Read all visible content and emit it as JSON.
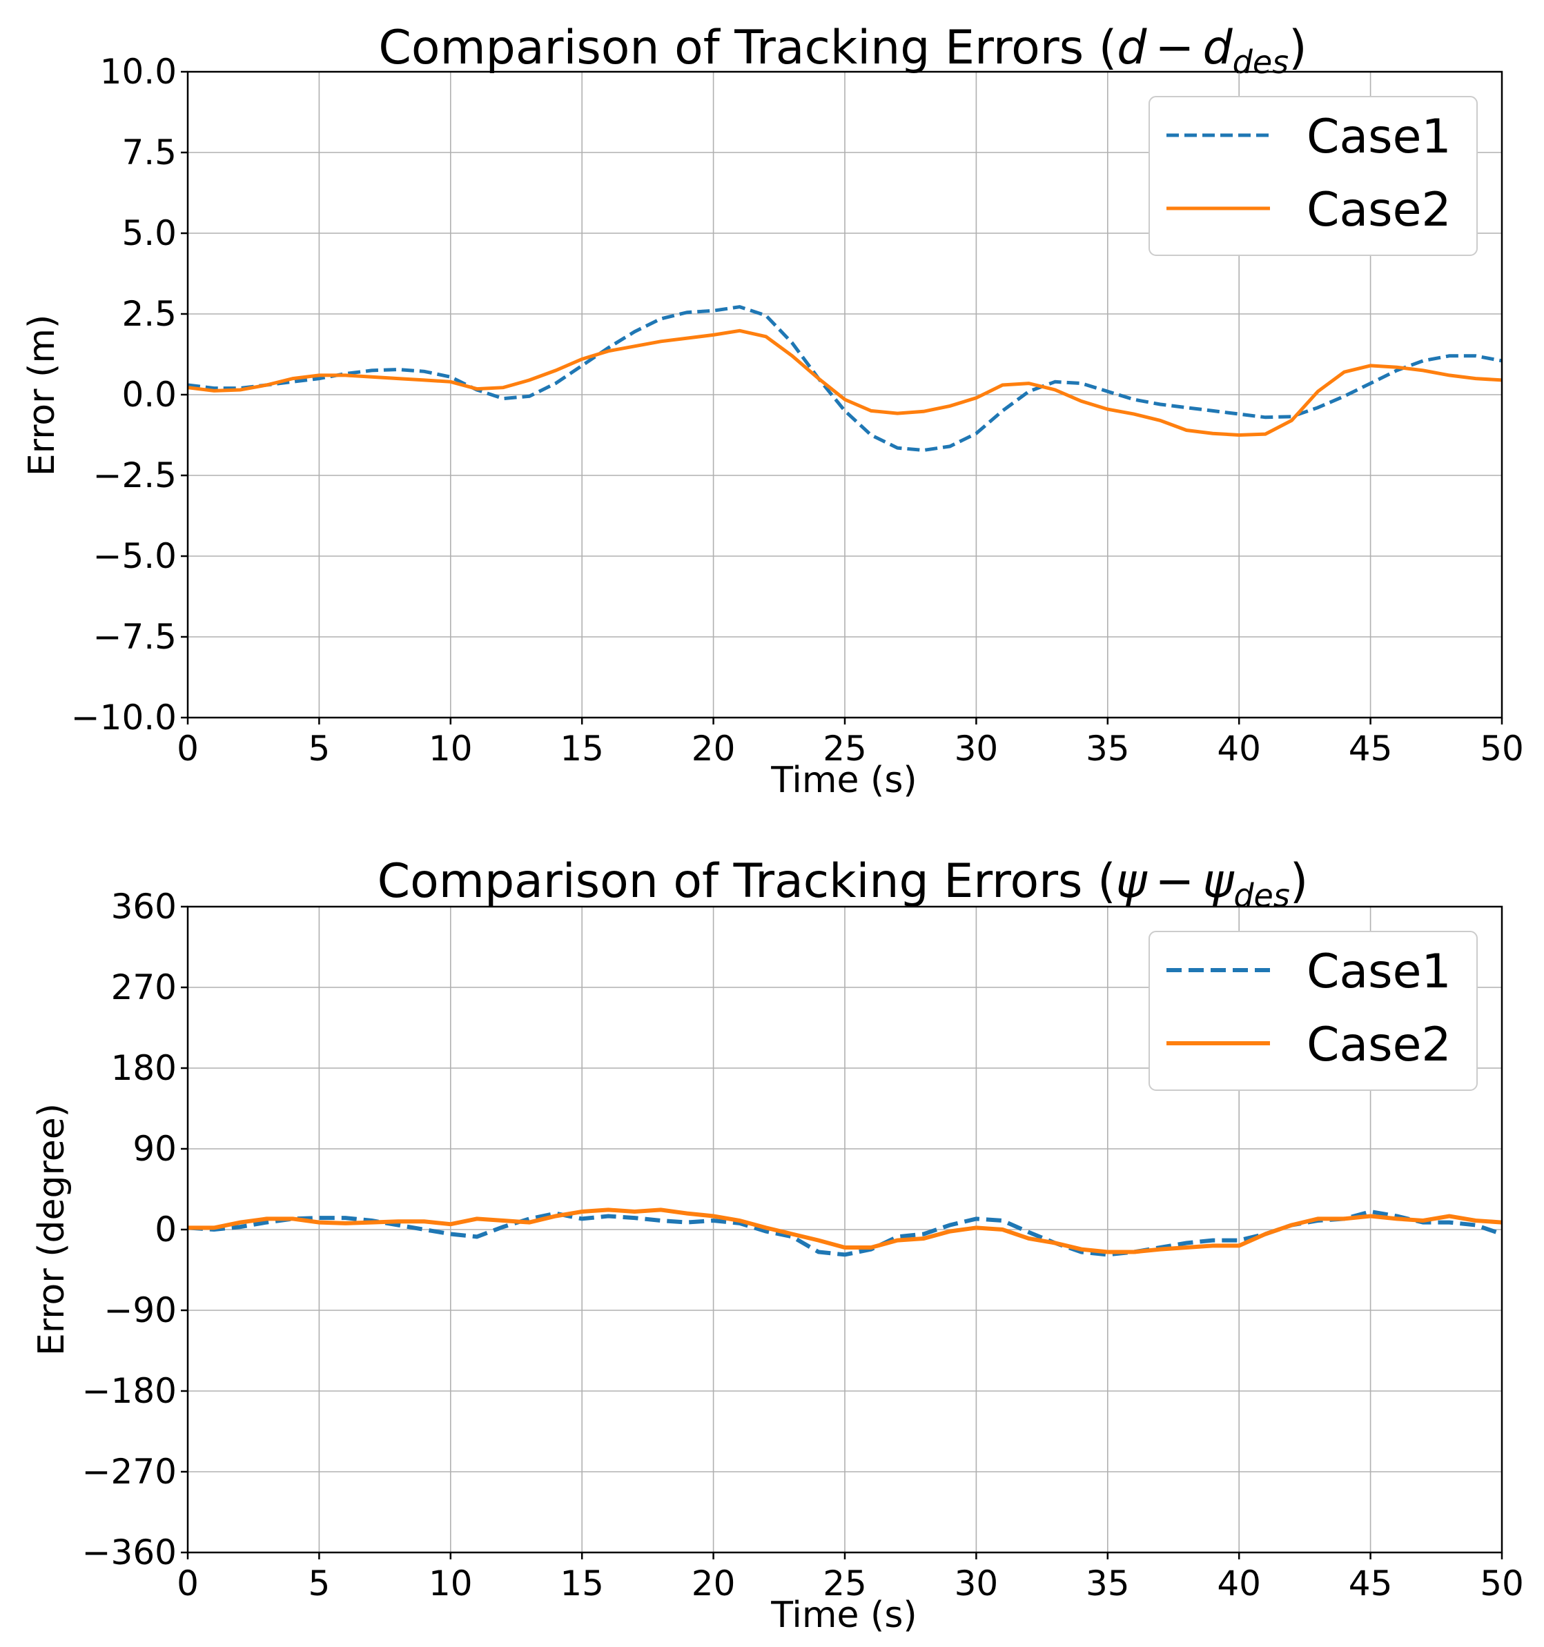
{
  "chart_data": [
    {
      "type": "line",
      "title": "Comparison of Tracking Errors (",
      "title_math": {
        "a": "d",
        "op": "−",
        "b": "d",
        "sub": "des"
      },
      "title_close": ")",
      "xlabel": "Time (s)",
      "ylabel": "Error (m)",
      "xlim": [
        0,
        50
      ],
      "ylim": [
        -10,
        10
      ],
      "xticks": [
        0,
        5,
        10,
        15,
        20,
        25,
        30,
        35,
        40,
        45,
        50
      ],
      "yticks": [
        -10,
        -7.5,
        -5,
        -2.5,
        0,
        2.5,
        5,
        7.5,
        10
      ],
      "xtick_labels": [
        "0",
        "5",
        "10",
        "15",
        "20",
        "25",
        "30",
        "35",
        "40",
        "45",
        "50"
      ],
      "ytick_labels": [
        "−10.0",
        "−7.5",
        "−5.0",
        "−2.5",
        "0.0",
        "2.5",
        "5.0",
        "7.5",
        "10.0"
      ],
      "grid": true,
      "legend": {
        "location": "top-right",
        "entries": [
          "Case1",
          "Case2"
        ]
      },
      "series": [
        {
          "name": "Case1",
          "style": "dashed",
          "color": "#1f77b4",
          "points": [
            [
              0,
              0.3
            ],
            [
              1,
              0.2
            ],
            [
              2,
              0.2
            ],
            [
              3,
              0.3
            ],
            [
              4,
              0.4
            ],
            [
              5,
              0.5
            ],
            [
              6,
              0.65
            ],
            [
              7,
              0.75
            ],
            [
              8,
              0.78
            ],
            [
              9,
              0.72
            ],
            [
              10,
              0.55
            ],
            [
              11,
              0.15
            ],
            [
              12,
              -0.12
            ],
            [
              13,
              -0.05
            ],
            [
              14,
              0.35
            ],
            [
              15,
              0.9
            ],
            [
              16,
              1.45
            ],
            [
              17,
              1.95
            ],
            [
              18,
              2.35
            ],
            [
              19,
              2.55
            ],
            [
              20,
              2.6
            ],
            [
              21,
              2.72
            ],
            [
              22,
              2.45
            ],
            [
              23,
              1.6
            ],
            [
              24,
              0.5
            ],
            [
              25,
              -0.5
            ],
            [
              26,
              -1.25
            ],
            [
              27,
              -1.65
            ],
            [
              28,
              -1.72
            ],
            [
              29,
              -1.6
            ],
            [
              30,
              -1.2
            ],
            [
              31,
              -0.5
            ],
            [
              32,
              0.1
            ],
            [
              33,
              0.4
            ],
            [
              34,
              0.35
            ],
            [
              35,
              0.1
            ],
            [
              36,
              -0.15
            ],
            [
              37,
              -0.3
            ],
            [
              38,
              -0.4
            ],
            [
              39,
              -0.5
            ],
            [
              40,
              -0.6
            ],
            [
              41,
              -0.7
            ],
            [
              42,
              -0.68
            ],
            [
              43,
              -0.4
            ],
            [
              44,
              -0.05
            ],
            [
              45,
              0.35
            ],
            [
              46,
              0.75
            ],
            [
              47,
              1.05
            ],
            [
              48,
              1.2
            ],
            [
              49,
              1.2
            ],
            [
              50,
              1.05
            ]
          ]
        },
        {
          "name": "Case2",
          "style": "solid",
          "color": "#ff7f0e",
          "points": [
            [
              0,
              0.22
            ],
            [
              1,
              0.12
            ],
            [
              2,
              0.15
            ],
            [
              3,
              0.3
            ],
            [
              4,
              0.5
            ],
            [
              5,
              0.6
            ],
            [
              6,
              0.6
            ],
            [
              7,
              0.55
            ],
            [
              8,
              0.5
            ],
            [
              9,
              0.45
            ],
            [
              10,
              0.4
            ],
            [
              11,
              0.18
            ],
            [
              12,
              0.22
            ],
            [
              13,
              0.45
            ],
            [
              14,
              0.75
            ],
            [
              15,
              1.1
            ],
            [
              16,
              1.35
            ],
            [
              17,
              1.5
            ],
            [
              18,
              1.65
            ],
            [
              19,
              1.75
            ],
            [
              20,
              1.85
            ],
            [
              21,
              1.98
            ],
            [
              22,
              1.8
            ],
            [
              23,
              1.2
            ],
            [
              24,
              0.5
            ],
            [
              25,
              -0.15
            ],
            [
              26,
              -0.5
            ],
            [
              27,
              -0.58
            ],
            [
              28,
              -0.52
            ],
            [
              29,
              -0.35
            ],
            [
              30,
              -0.1
            ],
            [
              31,
              0.3
            ],
            [
              32,
              0.35
            ],
            [
              33,
              0.15
            ],
            [
              34,
              -0.2
            ],
            [
              35,
              -0.45
            ],
            [
              36,
              -0.6
            ],
            [
              37,
              -0.8
            ],
            [
              38,
              -1.1
            ],
            [
              39,
              -1.2
            ],
            [
              40,
              -1.25
            ],
            [
              41,
              -1.22
            ],
            [
              42,
              -0.8
            ],
            [
              43,
              0.1
            ],
            [
              44,
              0.7
            ],
            [
              45,
              0.9
            ],
            [
              46,
              0.85
            ],
            [
              47,
              0.75
            ],
            [
              48,
              0.6
            ],
            [
              49,
              0.5
            ],
            [
              50,
              0.45
            ]
          ]
        }
      ]
    },
    {
      "type": "line",
      "title": "Comparison of Tracking Errors (",
      "title_math": {
        "a": "ψ",
        "op": "−",
        "b": "ψ",
        "sub": "des"
      },
      "title_close": ")",
      "xlabel": "Time (s)",
      "ylabel": "Error (degree)",
      "xlim": [
        0,
        50
      ],
      "ylim": [
        -360,
        360
      ],
      "xticks": [
        0,
        5,
        10,
        15,
        20,
        25,
        30,
        35,
        40,
        45,
        50
      ],
      "yticks": [
        -360,
        -270,
        -180,
        -90,
        0,
        90,
        180,
        270,
        360
      ],
      "xtick_labels": [
        "0",
        "5",
        "10",
        "15",
        "20",
        "25",
        "30",
        "35",
        "40",
        "45",
        "50"
      ],
      "ytick_labels": [
        "−360",
        "−270",
        "−180",
        "−90",
        "0",
        "90",
        "180",
        "270",
        "360"
      ],
      "grid": true,
      "legend": {
        "location": "top-right",
        "entries": [
          "Case1",
          "Case2"
        ]
      },
      "series": [
        {
          "name": "Case1",
          "style": "dashed",
          "color": "#1f77b4",
          "points": [
            [
              0,
              2
            ],
            [
              1,
              0
            ],
            [
              2,
              3
            ],
            [
              3,
              8
            ],
            [
              4,
              12
            ],
            [
              5,
              13
            ],
            [
              6,
              13
            ],
            [
              7,
              10
            ],
            [
              8,
              5
            ],
            [
              9,
              0
            ],
            [
              10,
              -5
            ],
            [
              11,
              -8
            ],
            [
              12,
              3
            ],
            [
              13,
              12
            ],
            [
              14,
              18
            ],
            [
              15,
              12
            ],
            [
              16,
              15
            ],
            [
              17,
              13
            ],
            [
              18,
              10
            ],
            [
              19,
              8
            ],
            [
              20,
              10
            ],
            [
              21,
              7
            ],
            [
              22,
              -2
            ],
            [
              23,
              -8
            ],
            [
              24,
              -25
            ],
            [
              25,
              -28
            ],
            [
              26,
              -22
            ],
            [
              27,
              -8
            ],
            [
              28,
              -5
            ],
            [
              29,
              5
            ],
            [
              30,
              12
            ],
            [
              31,
              10
            ],
            [
              32,
              -3
            ],
            [
              33,
              -15
            ],
            [
              34,
              -25
            ],
            [
              35,
              -28
            ],
            [
              36,
              -25
            ],
            [
              37,
              -20
            ],
            [
              38,
              -15
            ],
            [
              39,
              -12
            ],
            [
              40,
              -12
            ],
            [
              41,
              -5
            ],
            [
              42,
              5
            ],
            [
              43,
              10
            ],
            [
              44,
              12
            ],
            [
              45,
              20
            ],
            [
              46,
              15
            ],
            [
              47,
              8
            ],
            [
              48,
              8
            ],
            [
              49,
              5
            ],
            [
              50,
              -5
            ]
          ]
        },
        {
          "name": "Case2",
          "style": "solid",
          "color": "#ff7f0e",
          "points": [
            [
              0,
              2
            ],
            [
              1,
              2
            ],
            [
              2,
              8
            ],
            [
              3,
              12
            ],
            [
              4,
              12
            ],
            [
              5,
              8
            ],
            [
              6,
              7
            ],
            [
              7,
              8
            ],
            [
              8,
              9
            ],
            [
              9,
              9
            ],
            [
              10,
              6
            ],
            [
              11,
              12
            ],
            [
              12,
              10
            ],
            [
              13,
              8
            ],
            [
              14,
              15
            ],
            [
              15,
              20
            ],
            [
              16,
              22
            ],
            [
              17,
              20
            ],
            [
              18,
              22
            ],
            [
              19,
              18
            ],
            [
              20,
              15
            ],
            [
              21,
              10
            ],
            [
              22,
              2
            ],
            [
              23,
              -5
            ],
            [
              24,
              -12
            ],
            [
              25,
              -20
            ],
            [
              26,
              -20
            ],
            [
              27,
              -12
            ],
            [
              28,
              -10
            ],
            [
              29,
              -2
            ],
            [
              30,
              2
            ],
            [
              31,
              0
            ],
            [
              32,
              -10
            ],
            [
              33,
              -15
            ],
            [
              34,
              -22
            ],
            [
              35,
              -25
            ],
            [
              36,
              -25
            ],
            [
              37,
              -22
            ],
            [
              38,
              -20
            ],
            [
              39,
              -18
            ],
            [
              40,
              -18
            ],
            [
              41,
              -5
            ],
            [
              42,
              5
            ],
            [
              43,
              12
            ],
            [
              44,
              12
            ],
            [
              45,
              15
            ],
            [
              46,
              12
            ],
            [
              47,
              10
            ],
            [
              48,
              15
            ],
            [
              49,
              10
            ],
            [
              50,
              8
            ]
          ]
        }
      ]
    }
  ]
}
